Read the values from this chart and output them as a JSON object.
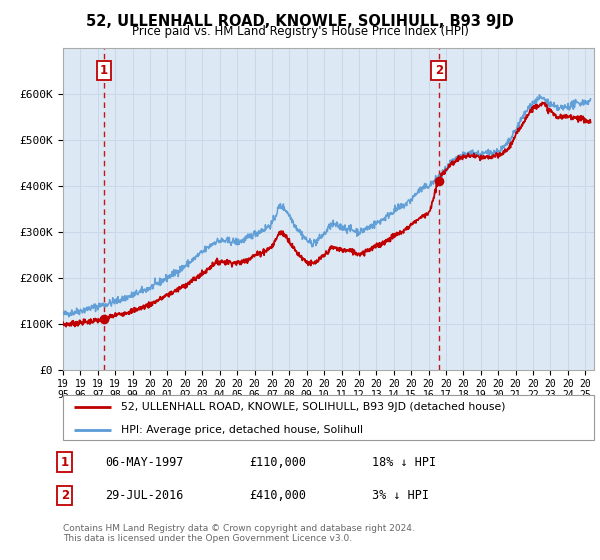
{
  "title": "52, ULLENHALL ROAD, KNOWLE, SOLIHULL, B93 9JD",
  "subtitle": "Price paid vs. HM Land Registry's House Price Index (HPI)",
  "legend_line1": "52, ULLENHALL ROAD, KNOWLE, SOLIHULL, B93 9JD (detached house)",
  "legend_line2": "HPI: Average price, detached house, Solihull",
  "sale1_label": "1",
  "sale1_date": "06-MAY-1997",
  "sale1_price": "£110,000",
  "sale1_hpi": "18% ↓ HPI",
  "sale2_label": "2",
  "sale2_date": "29-JUL-2016",
  "sale2_price": "£410,000",
  "sale2_hpi": "3% ↓ HPI",
  "footer": "Contains HM Land Registry data © Crown copyright and database right 2024.\nThis data is licensed under the Open Government Licence v3.0.",
  "hpi_line_color": "#5b9bd5",
  "price_line_color": "#c00000",
  "sale_marker_color": "#c00000",
  "vline_color": "#c00000",
  "grid_color": "#c8d8e8",
  "chart_bg": "#dce9f5",
  "background_color": "#ffffff",
  "ylim": [
    0,
    700000
  ],
  "yticks": [
    0,
    100000,
    200000,
    300000,
    400000,
    500000,
    600000
  ],
  "ytick_labels": [
    "£0",
    "£100K",
    "£200K",
    "£300K",
    "£400K",
    "£500K",
    "£600K"
  ],
  "sale1_x": 1997.35,
  "sale1_y": 110000,
  "sale2_x": 2016.58,
  "sale2_y": 410000,
  "vline1_x": 1997.35,
  "vline2_x": 2016.58,
  "xmin": 1995,
  "xmax": 2025.5,
  "xtick_years": [
    1995,
    1996,
    1997,
    1998,
    1999,
    2000,
    2001,
    2002,
    2003,
    2004,
    2005,
    2006,
    2007,
    2008,
    2009,
    2010,
    2011,
    2012,
    2013,
    2014,
    2015,
    2016,
    2017,
    2018,
    2019,
    2020,
    2021,
    2022,
    2023,
    2024,
    2025
  ],
  "hpi_anchors": [
    [
      1995.0,
      120000
    ],
    [
      1996.0,
      128000
    ],
    [
      1997.0,
      138000
    ],
    [
      1998.0,
      148000
    ],
    [
      1999.0,
      162000
    ],
    [
      2000.0,
      178000
    ],
    [
      2001.0,
      200000
    ],
    [
      2002.0,
      225000
    ],
    [
      2003.0,
      255000
    ],
    [
      2004.0,
      280000
    ],
    [
      2005.0,
      278000
    ],
    [
      2006.0,
      295000
    ],
    [
      2007.0,
      318000
    ],
    [
      2007.5,
      355000
    ],
    [
      2008.5,
      305000
    ],
    [
      2009.3,
      275000
    ],
    [
      2010.0,
      295000
    ],
    [
      2010.5,
      315000
    ],
    [
      2011.0,
      310000
    ],
    [
      2011.5,
      305000
    ],
    [
      2012.0,
      300000
    ],
    [
      2012.5,
      308000
    ],
    [
      2013.0,
      318000
    ],
    [
      2013.5,
      330000
    ],
    [
      2014.0,
      345000
    ],
    [
      2014.5,
      355000
    ],
    [
      2015.0,
      370000
    ],
    [
      2015.5,
      390000
    ],
    [
      2016.0,
      400000
    ],
    [
      2016.5,
      415000
    ],
    [
      2017.0,
      435000
    ],
    [
      2017.5,
      455000
    ],
    [
      2018.0,
      465000
    ],
    [
      2018.5,
      470000
    ],
    [
      2019.0,
      468000
    ],
    [
      2019.5,
      472000
    ],
    [
      2020.0,
      475000
    ],
    [
      2020.5,
      490000
    ],
    [
      2021.0,
      520000
    ],
    [
      2021.5,
      555000
    ],
    [
      2022.0,
      580000
    ],
    [
      2022.5,
      590000
    ],
    [
      2023.0,
      575000
    ],
    [
      2023.5,
      568000
    ],
    [
      2024.0,
      572000
    ],
    [
      2024.5,
      578000
    ],
    [
      2025.0,
      582000
    ]
  ],
  "price_anchors": [
    [
      1995.0,
      98000
    ],
    [
      1996.0,
      102000
    ],
    [
      1997.35,
      110000
    ],
    [
      1998.0,
      118000
    ],
    [
      1999.0,
      128000
    ],
    [
      2000.0,
      142000
    ],
    [
      2001.0,
      162000
    ],
    [
      2002.0,
      183000
    ],
    [
      2003.0,
      208000
    ],
    [
      2004.0,
      235000
    ],
    [
      2005.0,
      232000
    ],
    [
      2006.0,
      248000
    ],
    [
      2007.0,
      268000
    ],
    [
      2007.5,
      298000
    ],
    [
      2008.5,
      252000
    ],
    [
      2009.3,
      230000
    ],
    [
      2010.0,
      248000
    ],
    [
      2010.5,
      265000
    ],
    [
      2011.0,
      260000
    ],
    [
      2011.5,
      258000
    ],
    [
      2012.0,
      252000
    ],
    [
      2012.5,
      260000
    ],
    [
      2013.0,
      268000
    ],
    [
      2013.5,
      278000
    ],
    [
      2014.0,
      290000
    ],
    [
      2014.5,
      300000
    ],
    [
      2015.0,
      315000
    ],
    [
      2015.5,
      330000
    ],
    [
      2016.0,
      342000
    ],
    [
      2016.58,
      410000
    ],
    [
      2017.0,
      435000
    ],
    [
      2017.5,
      452000
    ],
    [
      2018.0,
      462000
    ],
    [
      2018.5,
      465000
    ],
    [
      2019.0,
      460000
    ],
    [
      2019.5,
      462000
    ],
    [
      2020.0,
      465000
    ],
    [
      2020.5,
      478000
    ],
    [
      2021.0,
      508000
    ],
    [
      2021.5,
      542000
    ],
    [
      2022.0,
      568000
    ],
    [
      2022.5,
      578000
    ],
    [
      2023.0,
      562000
    ],
    [
      2023.5,
      548000
    ],
    [
      2024.0,
      550000
    ],
    [
      2024.5,
      548000
    ],
    [
      2025.0,
      542000
    ]
  ]
}
